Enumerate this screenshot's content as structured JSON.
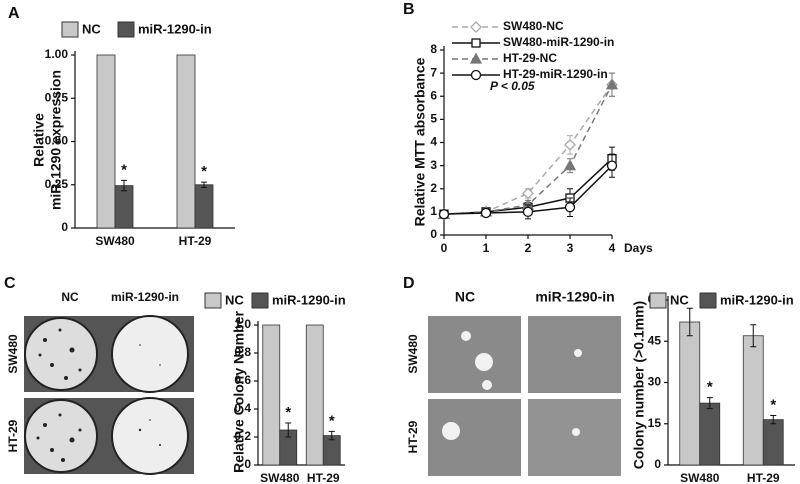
{
  "panels": [
    "A",
    "B",
    "C",
    "D"
  ],
  "photo_labels": {
    "c": {
      "columns": [
        "NC",
        "miR-1290-in"
      ],
      "rows": [
        "SW480",
        "HT-29"
      ]
    },
    "d": {
      "columns": [
        "NC",
        "miR-1290-in"
      ],
      "rows": [
        "SW480",
        "HT-29"
      ]
    }
  },
  "chart_data": [
    {
      "type": "bar",
      "ylabel": [
        "Relative",
        "miR-1290 expression"
      ],
      "categories": [
        "SW480",
        "HT-29"
      ],
      "series": [
        {
          "name": "NC",
          "color": "#c8c8c8",
          "values": [
            1,
            1
          ]
        },
        {
          "name": "miR-1290-in",
          "color": "#555555",
          "values": [
            0.245,
            0.25
          ],
          "errors": [
            0.03,
            0.015
          ],
          "marks": [
            "*",
            "*"
          ]
        }
      ],
      "ylim": [
        0,
        1
      ],
      "yticks": [
        0,
        {
          "value": 0.25,
          "label": "0.25"
        },
        {
          "value": 0.5,
          "label": "0.50"
        },
        {
          "value": 0.75,
          "label": "0.75"
        },
        {
          "value": 1,
          "label": "1.00"
        }
      ]
    },
    {
      "type": "line",
      "ylabel": [
        "Relative MTT absorbance"
      ],
      "xlabel": "Days",
      "annotation": "P < 0.05",
      "x": [
        0,
        1,
        2,
        3,
        4
      ],
      "series": [
        {
          "name": "SW480-NC",
          "color": "#aaaaaa",
          "line_style": "dashed",
          "marker": "diamond",
          "marker_fill": "open",
          "values": [
            0.9,
            1.0,
            1.8,
            3.9,
            6.5
          ],
          "errors": [
            0.05,
            0.15,
            0.2,
            0.4,
            0.5
          ]
        },
        {
          "name": "SW480-miR-1290-in",
          "color": "#111111",
          "line_style": "solid",
          "marker": "square",
          "marker_fill": "open",
          "values": [
            0.9,
            1.0,
            1.2,
            1.6,
            3.3
          ],
          "errors": [
            0.05,
            0.1,
            0.2,
            0.4,
            0.5
          ]
        },
        {
          "name": "HT-29-NC",
          "color": "#777777",
          "line_style": "dashed",
          "marker": "triangle",
          "marker_fill": "filled",
          "values": [
            0.9,
            1.0,
            1.3,
            3.0,
            6.5
          ],
          "errors": [
            0.05,
            0.1,
            0.2,
            0.3,
            0.5
          ]
        },
        {
          "name": "HT-29-miR-1290-in",
          "color": "#111111",
          "line_style": "solid",
          "marker": "circle",
          "marker_fill": "open",
          "values": [
            0.9,
            0.95,
            1.0,
            1.2,
            3.0
          ],
          "errors": [
            0.05,
            0.1,
            0.3,
            0.4,
            0.5
          ]
        }
      ],
      "xlim": [
        0,
        4
      ],
      "xticks": [
        0,
        1,
        2,
        3,
        4
      ],
      "ylim": [
        0,
        8
      ],
      "yticks": [
        0,
        1,
        2,
        3,
        4,
        5,
        6,
        7,
        8
      ]
    },
    {
      "type": "bar",
      "ylabel": [
        "Relative Colony Number"
      ],
      "categories": [
        "SW480",
        "HT-29"
      ],
      "series": [
        {
          "name": "NC",
          "color": "#c8c8c8",
          "values": [
            1,
            1
          ]
        },
        {
          "name": "miR-1290-in",
          "color": "#555555",
          "values": [
            0.25,
            0.21
          ],
          "errors": [
            0.05,
            0.03
          ],
          "marks": [
            "*",
            "*"
          ]
        }
      ],
      "ylim": [
        0,
        1
      ],
      "yticks": [
        0,
        0.2,
        0.4,
        0.6,
        0.8,
        {
          "value": 1,
          "label": "1.0"
        }
      ]
    },
    {
      "type": "bar",
      "ylabel": [
        "Colony number (>0.1mm)"
      ],
      "categories": [
        "SW480",
        "HT-29"
      ],
      "series": [
        {
          "name": "NC",
          "color": "#c8c8c8",
          "values": [
            52,
            47
          ],
          "errors": [
            5,
            4
          ]
        },
        {
          "name": "miR-1290-in",
          "color": "#555555",
          "values": [
            22.5,
            16.5
          ],
          "errors": [
            2,
            1.5
          ],
          "marks": [
            "*",
            "*"
          ]
        }
      ],
      "ylim": [
        0,
        60
      ],
      "yticks": [
        0,
        15,
        30,
        45,
        60
      ]
    }
  ]
}
